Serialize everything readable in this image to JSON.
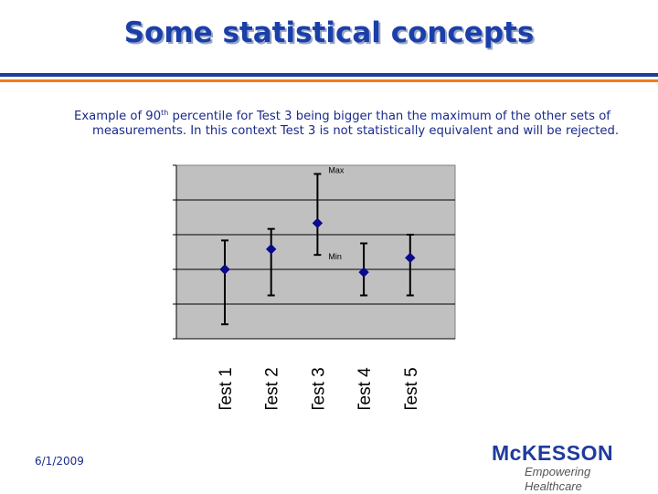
{
  "slide": {
    "title": "Some statistical concepts",
    "body_pre": "Example of 90",
    "body_sup": "th",
    "body_post": " percentile for Test 3 being bigger than the maximum of the other sets of measurements. In this context Test 3 is not statistically equivalent and will be rejected.",
    "footer_date": "6/1/2009"
  },
  "logo": {
    "name": "McKESSON",
    "tagline": "Empowering Healthcare"
  },
  "colors": {
    "title": "#1a3fa8",
    "text": "#1a2a8c",
    "rule_blue": "#1f3b9c",
    "rule_orange": "#f27a1a",
    "plot_bg": "#c0c0c0",
    "marker": "#0a0a8c"
  },
  "chart_data": {
    "type": "scatter",
    "title": "",
    "xlabel": "",
    "ylabel": "",
    "categories": [
      "Test 1",
      "Test 2",
      "Test 3",
      "Test 4",
      "Test 5"
    ],
    "series": [
      {
        "values": [
          2.4,
          3.1,
          4.0,
          2.3,
          2.8
        ],
        "low": [
          0.5,
          1.5,
          2.9,
          1.5,
          1.5
        ],
        "high": [
          3.4,
          3.8,
          5.7,
          3.3,
          3.6
        ]
      }
    ],
    "annotations": [
      {
        "text": "Max",
        "category": "Test 3",
        "anchor": "high"
      },
      {
        "text": "Min",
        "category": "Test 3",
        "anchor": "low"
      }
    ],
    "ylim": [
      0,
      6
    ],
    "grid": true,
    "legend": "none"
  }
}
